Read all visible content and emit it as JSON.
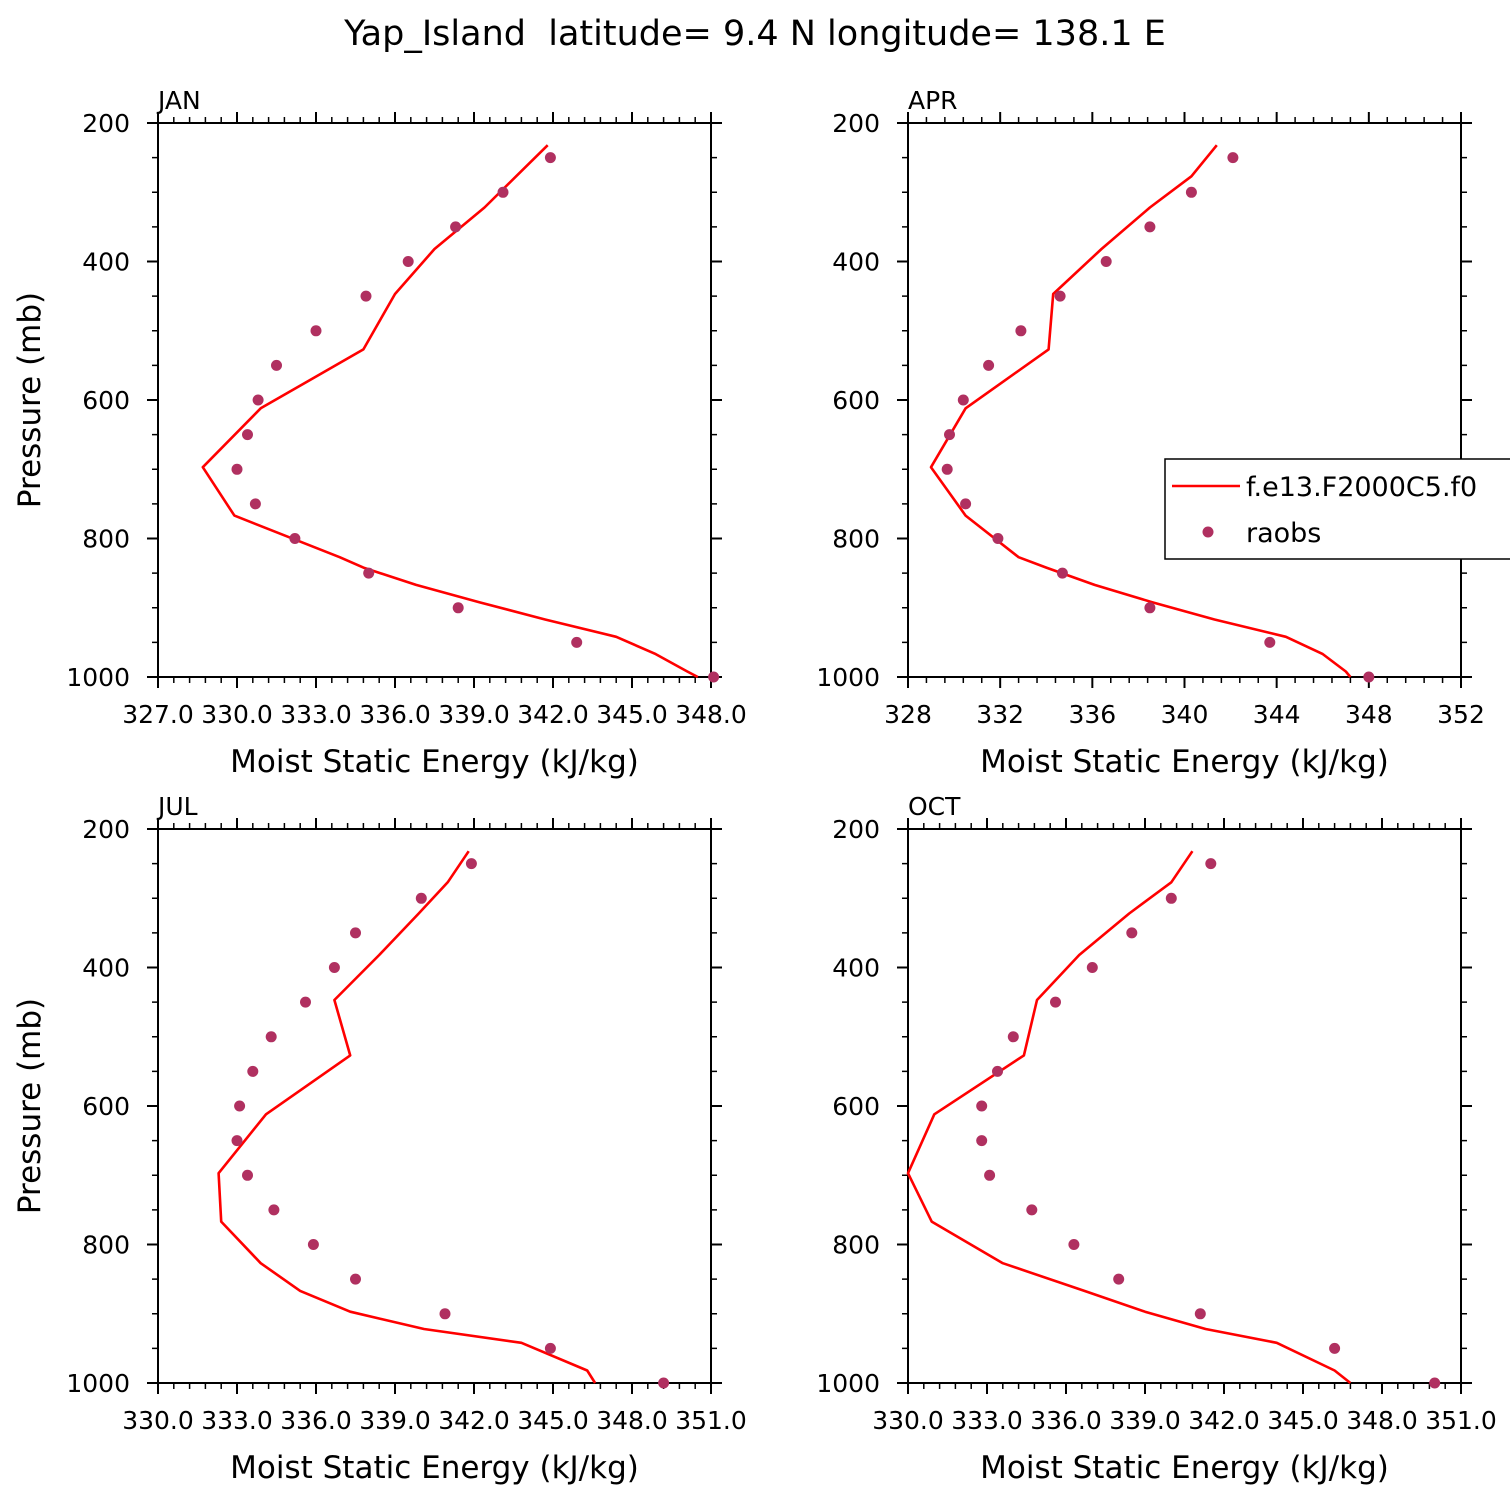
{
  "title": "Yap_Island  latitude= 9.4 N longitude= 138.1 E",
  "colors": {
    "model": "#ff0000",
    "obs": "#b03060",
    "axis": "#000000"
  },
  "legend": {
    "model_label": "f.e13.F2000C5.f0",
    "obs_label": "raobs"
  },
  "chart_data": [
    {
      "type": "line",
      "panel_label": "JAN",
      "xlabel": "Moist Static Energy (kJ/kg)",
      "ylabel": "Pressure (mb)",
      "xlim": [
        327.0,
        348.0
      ],
      "ylim": [
        200,
        1000
      ],
      "y_reversed": true,
      "xticks": [
        327.0,
        330.0,
        333.0,
        336.0,
        339.0,
        342.0,
        345.0,
        348.0
      ],
      "xtick_labels": [
        "327.0",
        "330.0",
        "333.0",
        "336.0",
        "339.0",
        "342.0",
        "345.0",
        "348.0"
      ],
      "yticks": [
        200,
        400,
        600,
        800,
        1000
      ],
      "ytick_labels": [
        "200",
        "400",
        "600",
        "800",
        "1000"
      ],
      "series": [
        {
          "kind": "line",
          "p": [
            1000,
            992,
            967,
            942,
            917,
            892,
            867,
            842,
            827,
            767,
            697,
            612,
            527,
            447,
            382,
            322,
            277,
            232
          ],
          "mse": [
            347.5,
            347.1,
            345.9,
            344.4,
            341.7,
            339.2,
            336.8,
            334.8,
            333.9,
            329.9,
            328.7,
            330.9,
            334.8,
            336.0,
            337.5,
            339.4,
            340.6,
            341.8
          ]
        },
        {
          "kind": "points",
          "name": "raobs",
          "p": [
            1000,
            950,
            900,
            850,
            800,
            750,
            700,
            650,
            600,
            550,
            500,
            450,
            400,
            350,
            300,
            250
          ],
          "mse": [
            348.1,
            342.9,
            338.4,
            335.0,
            332.2,
            330.7,
            330.0,
            330.4,
            330.8,
            331.5,
            333.0,
            334.9,
            336.5,
            338.3,
            340.1,
            341.9
          ]
        }
      ]
    },
    {
      "type": "line",
      "panel_label": "APR",
      "xlabel": "Moist Static Energy (kJ/kg)",
      "ylabel": "",
      "xlim": [
        328,
        352
      ],
      "ylim": [
        200,
        1000
      ],
      "y_reversed": true,
      "xticks": [
        328,
        332,
        336,
        340,
        344,
        348,
        352
      ],
      "xtick_labels": [
        "328",
        "332",
        "336",
        "340",
        "344",
        "348",
        "352"
      ],
      "yticks": [
        200,
        400,
        600,
        800,
        1000
      ],
      "ytick_labels": [
        "200",
        "400",
        "600",
        "800",
        "1000"
      ],
      "series": [
        {
          "kind": "line",
          "p": [
            1000,
            992,
            967,
            942,
            917,
            892,
            867,
            842,
            827,
            767,
            697,
            612,
            527,
            447,
            382,
            322,
            277,
            232
          ],
          "mse": [
            347.2,
            347.0,
            346.0,
            344.4,
            341.3,
            338.6,
            336.1,
            334.0,
            332.8,
            330.5,
            329.0,
            330.5,
            334.1,
            334.3,
            336.4,
            338.5,
            340.3,
            341.4
          ]
        },
        {
          "kind": "points",
          "name": "raobs",
          "p": [
            1000,
            950,
            900,
            850,
            800,
            750,
            700,
            650,
            600,
            550,
            500,
            450,
            400,
            350,
            300,
            250
          ],
          "mse": [
            348.0,
            343.7,
            338.5,
            334.7,
            331.9,
            330.5,
            329.7,
            329.8,
            330.4,
            331.5,
            332.9,
            334.6,
            336.6,
            338.5,
            340.3,
            342.1
          ]
        }
      ]
    },
    {
      "type": "line",
      "panel_label": "JUL",
      "xlabel": "Moist Static Energy (kJ/kg)",
      "ylabel": "Pressure (mb)",
      "xlim": [
        330.0,
        351.0
      ],
      "ylim": [
        200,
        1000
      ],
      "y_reversed": true,
      "xticks": [
        330.0,
        333.0,
        336.0,
        339.0,
        342.0,
        345.0,
        348.0,
        351.0
      ],
      "xtick_labels": [
        "330.0",
        "333.0",
        "336.0",
        "339.0",
        "342.0",
        "345.0",
        "348.0",
        "351.0"
      ],
      "yticks": [
        200,
        400,
        600,
        800,
        1000
      ],
      "ytick_labels": [
        "200",
        "400",
        "600",
        "800",
        "1000"
      ],
      "series": [
        {
          "kind": "line",
          "p": [
            1000,
            982,
            942,
            922,
            897,
            867,
            827,
            767,
            697,
            612,
            527,
            447,
            382,
            322,
            277,
            232
          ],
          "mse": [
            346.6,
            346.3,
            343.8,
            340.1,
            337.3,
            335.4,
            333.9,
            332.4,
            332.3,
            334.1,
            337.3,
            336.7,
            338.4,
            339.9,
            341.0,
            341.8
          ]
        },
        {
          "kind": "points",
          "name": "raobs",
          "p": [
            1000,
            950,
            900,
            850,
            800,
            750,
            700,
            650,
            600,
            550,
            500,
            450,
            400,
            350,
            300,
            250
          ],
          "mse": [
            349.2,
            344.9,
            340.9,
            337.5,
            335.9,
            334.4,
            333.4,
            333.0,
            333.1,
            333.6,
            334.3,
            335.6,
            336.7,
            337.5,
            340.0,
            341.9
          ]
        }
      ]
    },
    {
      "type": "line",
      "panel_label": "OCT",
      "xlabel": "Moist Static Energy (kJ/kg)",
      "ylabel": "",
      "xlim": [
        330.0,
        351.0
      ],
      "ylim": [
        200,
        1000
      ],
      "y_reversed": true,
      "xticks": [
        330.0,
        333.0,
        336.0,
        339.0,
        342.0,
        345.0,
        348.0,
        351.0
      ],
      "xtick_labels": [
        "330.0",
        "333.0",
        "336.0",
        "339.0",
        "342.0",
        "345.0",
        "348.0",
        "351.0"
      ],
      "yticks": [
        200,
        400,
        600,
        800,
        1000
      ],
      "ytick_labels": [
        "200",
        "400",
        "600",
        "800",
        "1000"
      ],
      "series": [
        {
          "kind": "line",
          "p": [
            1000,
            982,
            942,
            922,
            897,
            867,
            827,
            767,
            697,
            612,
            527,
            447,
            382,
            322,
            277,
            232
          ],
          "mse": [
            346.8,
            346.2,
            344.0,
            341.3,
            339.0,
            336.7,
            333.6,
            330.9,
            330.0,
            331.0,
            334.4,
            334.9,
            336.5,
            338.4,
            340.0,
            340.8
          ]
        },
        {
          "kind": "points",
          "name": "raobs",
          "p": [
            1000,
            950,
            900,
            850,
            800,
            750,
            700,
            650,
            600,
            550,
            500,
            450,
            400,
            350,
            300,
            250
          ],
          "mse": [
            350.0,
            346.2,
            341.1,
            338.0,
            336.3,
            334.7,
            333.1,
            332.8,
            332.8,
            333.4,
            334.0,
            335.6,
            337.0,
            338.5,
            340.0,
            341.5
          ]
        }
      ]
    }
  ]
}
